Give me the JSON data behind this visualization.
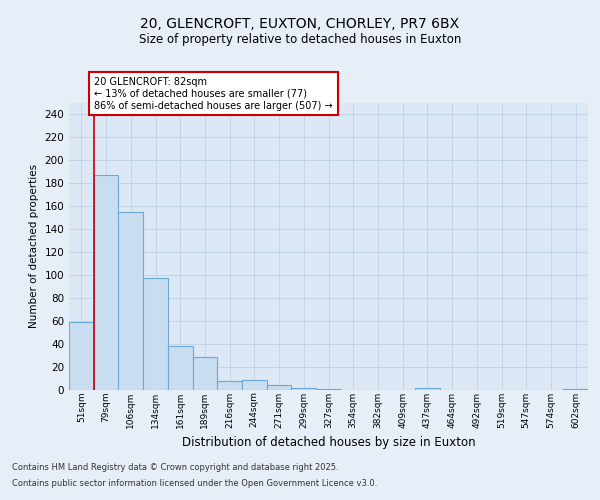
{
  "title_line1": "20, GLENCROFT, EUXTON, CHORLEY, PR7 6BX",
  "title_line2": "Size of property relative to detached houses in Euxton",
  "xlabel": "Distribution of detached houses by size in Euxton",
  "ylabel": "Number of detached properties",
  "categories": [
    "51sqm",
    "79sqm",
    "106sqm",
    "134sqm",
    "161sqm",
    "189sqm",
    "216sqm",
    "244sqm",
    "271sqm",
    "299sqm",
    "327sqm",
    "354sqm",
    "382sqm",
    "409sqm",
    "437sqm",
    "464sqm",
    "492sqm",
    "519sqm",
    "547sqm",
    "574sqm",
    "602sqm"
  ],
  "values": [
    59,
    187,
    155,
    97,
    38,
    29,
    8,
    9,
    4,
    2,
    1,
    0,
    0,
    0,
    2,
    0,
    0,
    0,
    0,
    0,
    1
  ],
  "bar_color": "#c9ddf0",
  "bar_edge_color": "#6aaad4",
  "bar_linewidth": 0.8,
  "ylim": [
    0,
    250
  ],
  "yticks": [
    0,
    20,
    40,
    60,
    80,
    100,
    120,
    140,
    160,
    180,
    200,
    220,
    240
  ],
  "red_line_x": 0.5,
  "annotation_title": "20 GLENCROFT: 82sqm",
  "annotation_line2": "← 13% of detached houses are smaller (77)",
  "annotation_line3": "86% of semi-detached houses are larger (507) →",
  "annotation_box_facecolor": "#ffffff",
  "annotation_box_edgecolor": "#cc0000",
  "red_line_color": "#cc0000",
  "footer_line1": "Contains HM Land Registry data © Crown copyright and database right 2025.",
  "footer_line2": "Contains public sector information licensed under the Open Government Licence v3.0.",
  "grid_color": "#c5d5e8",
  "background_color": "#e6eef7",
  "plot_bg_color": "#dce8f5"
}
